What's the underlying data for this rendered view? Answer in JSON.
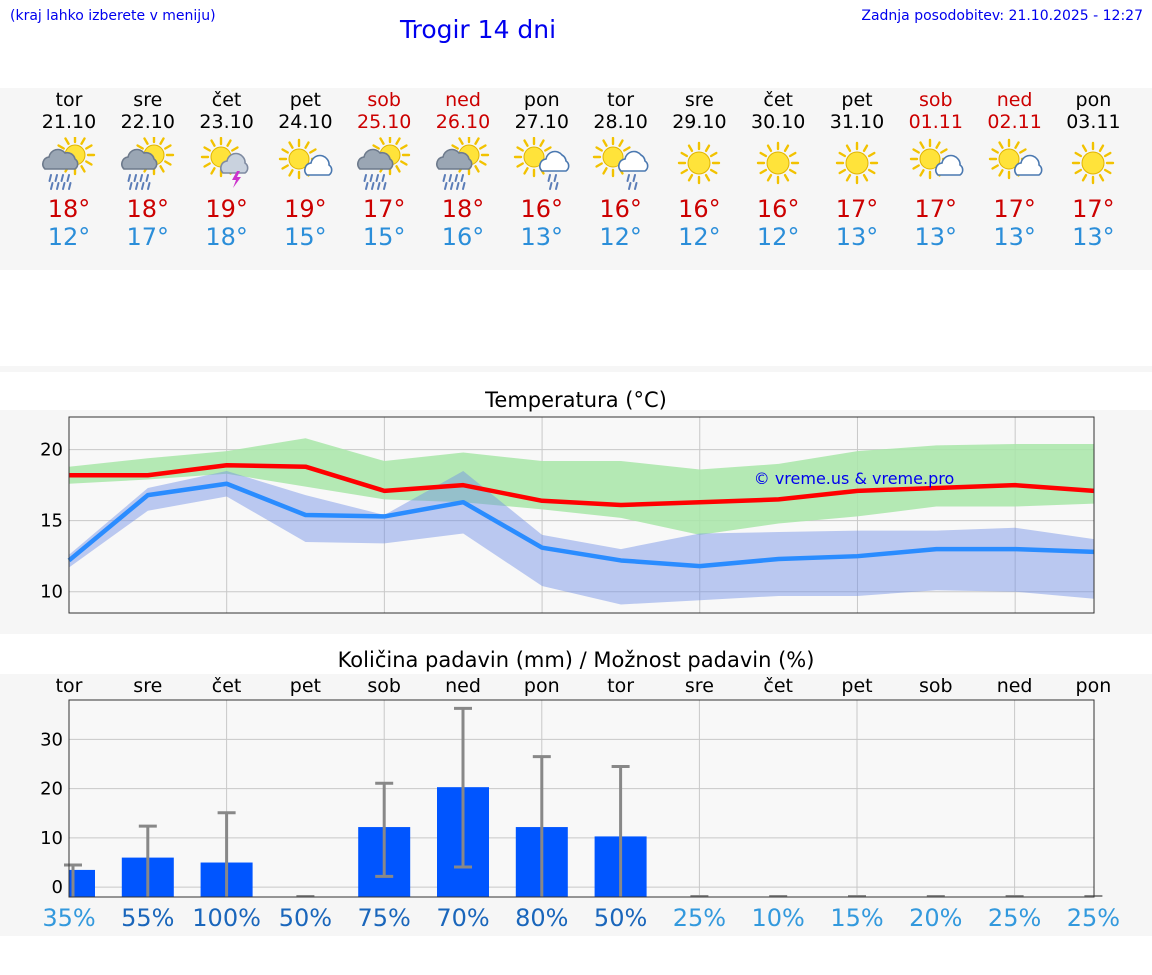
{
  "header": {
    "menu_hint": "(kraj lahko izberete v meniju)",
    "title": "Trogir 14 dni",
    "updated": "Zadnja posodobitev: 21.10.2025 - 12:27"
  },
  "colors": {
    "link": "#0000ee",
    "weekend": "#cc0000",
    "tmax": "#cc0000",
    "tmin": "#2b8ed9",
    "bar": "#0055ff",
    "error_bar": "#888888"
  },
  "days": [
    {
      "name": "tor",
      "date": "21.10",
      "weekend": false,
      "icon": "sun-cloud-rain-icon",
      "tmax": "18°",
      "tmin": "12°"
    },
    {
      "name": "sre",
      "date": "22.10",
      "weekend": false,
      "icon": "sun-cloud-rain-icon",
      "tmax": "18°",
      "tmin": "17°"
    },
    {
      "name": "čet",
      "date": "23.10",
      "weekend": false,
      "icon": "sun-thunderstorm-icon",
      "tmax": "19°",
      "tmin": "18°"
    },
    {
      "name": "pet",
      "date": "24.10",
      "weekend": false,
      "icon": "sun-cloud-icon",
      "tmax": "19°",
      "tmin": "15°"
    },
    {
      "name": "sob",
      "date": "25.10",
      "weekend": true,
      "icon": "sun-cloud-rain-icon",
      "tmax": "17°",
      "tmin": "15°"
    },
    {
      "name": "ned",
      "date": "26.10",
      "weekend": true,
      "icon": "sun-cloud-rain-icon",
      "tmax": "18°",
      "tmin": "16°"
    },
    {
      "name": "pon",
      "date": "27.10",
      "weekend": false,
      "icon": "sun-cloud-drizzle-icon",
      "tmax": "16°",
      "tmin": "13°"
    },
    {
      "name": "tor",
      "date": "28.10",
      "weekend": false,
      "icon": "sun-cloud-drizzle-icon",
      "tmax": "16°",
      "tmin": "12°"
    },
    {
      "name": "sre",
      "date": "29.10",
      "weekend": false,
      "icon": "sun-icon",
      "tmax": "16°",
      "tmin": "12°"
    },
    {
      "name": "čet",
      "date": "30.10",
      "weekend": false,
      "icon": "sun-icon",
      "tmax": "16°",
      "tmin": "12°"
    },
    {
      "name": "pet",
      "date": "31.10",
      "weekend": false,
      "icon": "sun-icon",
      "tmax": "17°",
      "tmin": "13°"
    },
    {
      "name": "sob",
      "date": "01.11",
      "weekend": true,
      "icon": "sun-cloud-icon",
      "tmax": "17°",
      "tmin": "13°"
    },
    {
      "name": "ned",
      "date": "02.11",
      "weekend": true,
      "icon": "sun-cloud-icon",
      "tmax": "17°",
      "tmin": "13°"
    },
    {
      "name": "pon",
      "date": "03.11",
      "weekend": false,
      "icon": "sun-icon",
      "tmax": "17°",
      "tmin": "13°"
    }
  ],
  "chart_data": [
    {
      "type": "area",
      "title": "Temperatura (°C)",
      "watermark": "© vreme.us & vreme.pro",
      "ylim": [
        8.5,
        22.3
      ],
      "yticks": [
        10,
        15,
        20
      ],
      "grid": true,
      "x": [
        "21.10",
        "22.10",
        "23.10",
        "24.10",
        "25.10",
        "26.10",
        "27.10",
        "28.10",
        "29.10",
        "30.10",
        "31.10",
        "01.11",
        "02.11",
        "03.11"
      ],
      "series": [
        {
          "role": "max",
          "color": "#ff0000",
          "values": [
            18.2,
            18.2,
            18.9,
            18.8,
            17.1,
            17.5,
            16.4,
            16.1,
            16.3,
            16.5,
            17.1,
            17.3,
            17.5,
            17.1
          ]
        },
        {
          "role": "min",
          "color": "#2a8cff",
          "values": [
            12.2,
            16.8,
            17.6,
            15.4,
            15.3,
            16.3,
            13.1,
            12.2,
            11.8,
            12.3,
            12.5,
            13.0,
            13.0,
            12.8
          ]
        },
        {
          "role": "max-range",
          "color": "#a8e6a8",
          "upper": [
            18.8,
            19.4,
            19.9,
            20.8,
            19.2,
            19.8,
            19.2,
            19.2,
            18.6,
            19.0,
            19.9,
            20.3,
            20.4,
            20.4
          ],
          "lower": [
            17.6,
            17.9,
            18.3,
            17.4,
            16.5,
            16.3,
            15.8,
            15.2,
            14.0,
            14.8,
            15.3,
            16.0,
            16.0,
            16.2
          ]
        },
        {
          "role": "min-range",
          "color": "#a9c4f2",
          "upper": [
            12.6,
            17.3,
            18.5,
            16.8,
            15.4,
            18.5,
            14.0,
            13.0,
            14.1,
            14.2,
            14.3,
            14.3,
            14.5,
            13.7
          ],
          "lower": [
            11.7,
            15.7,
            16.7,
            13.5,
            13.4,
            14.1,
            10.4,
            9.1,
            9.4,
            9.7,
            9.7,
            10.1,
            10.0,
            9.5
          ]
        }
      ]
    },
    {
      "type": "bar",
      "title": "Količina padavin (mm) / Možnost padavin (%)",
      "categories": [
        "tor",
        "sre",
        "čet",
        "pet",
        "sob",
        "ned",
        "pon",
        "tor",
        "sre",
        "čet",
        "pet",
        "sob",
        "ned",
        "pon"
      ],
      "ylim": [
        -2,
        38
      ],
      "yticks": [
        0,
        10,
        20,
        30
      ],
      "grid": true,
      "values": [
        3.5,
        6.0,
        5.0,
        0,
        12.2,
        20.3,
        12.2,
        10.3,
        0,
        0,
        0,
        0,
        0,
        0
      ],
      "error_low": [
        0,
        0,
        0,
        0,
        2.2,
        4.1,
        0,
        0,
        0,
        0,
        0,
        0,
        0,
        0
      ],
      "error_high": [
        4.5,
        12.4,
        15.1,
        0,
        21.1,
        36.3,
        26.5,
        24.5,
        0,
        0,
        0,
        0,
        0,
        0
      ],
      "probability": [
        "35%",
        "55%",
        "100%",
        "50%",
        "75%",
        "70%",
        "80%",
        "50%",
        "25%",
        "10%",
        "15%",
        "20%",
        "25%",
        "25%"
      ],
      "probability_colors": [
        "#3399dd",
        "#1a66bb",
        "#1a66bb",
        "#1a66bb",
        "#1a66bb",
        "#1a66bb",
        "#1a66bb",
        "#1a66bb",
        "#3399dd",
        "#3399dd",
        "#3399dd",
        "#3399dd",
        "#3399dd",
        "#3399dd"
      ]
    }
  ]
}
